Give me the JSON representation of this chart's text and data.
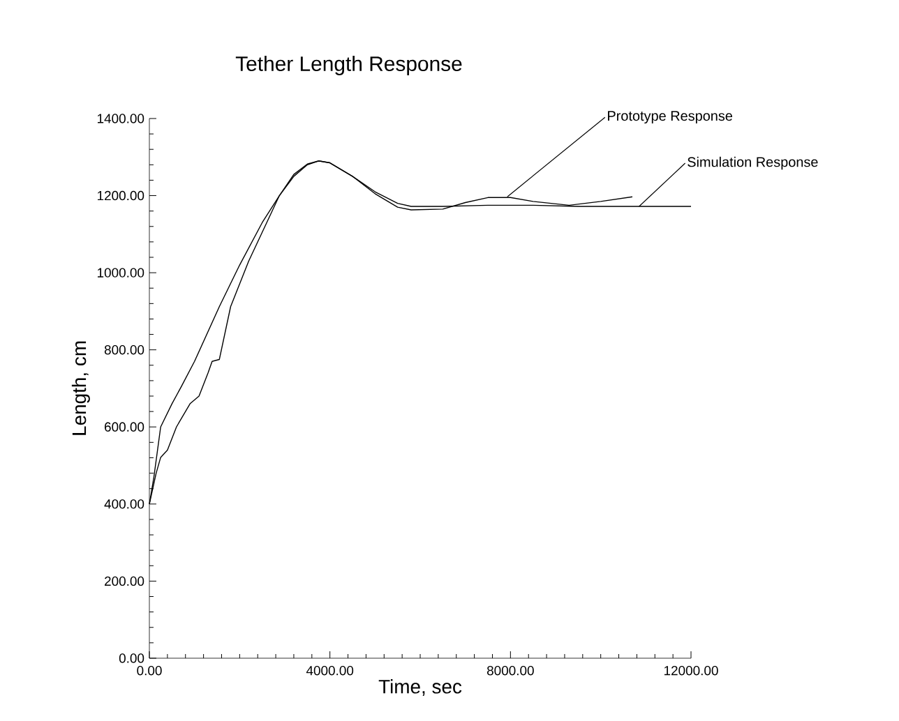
{
  "chart_data": {
    "type": "line",
    "title": "Tether Length Response",
    "xlabel": "Time,  sec",
    "ylabel": "Length,  cm",
    "xlim": [
      0,
      12000
    ],
    "ylim": [
      0,
      1400
    ],
    "xticks": [
      {
        "value": 0,
        "label": "0.00"
      },
      {
        "value": 4000,
        "label": "4000.00"
      },
      {
        "value": 8000,
        "label": "8000.00"
      },
      {
        "value": 12000,
        "label": "12000.00"
      }
    ],
    "yticks": [
      {
        "value": 0,
        "label": "0.00"
      },
      {
        "value": 200,
        "label": "200.00"
      },
      {
        "value": 400,
        "label": "400.00"
      },
      {
        "value": 600,
        "label": "600.00"
      },
      {
        "value": 800,
        "label": "800.00"
      },
      {
        "value": 1000,
        "label": "1000.00"
      },
      {
        "value": 1200,
        "label": "1200.00"
      },
      {
        "value": 1400,
        "label": "1400.00"
      }
    ],
    "grid": false,
    "marker": "none",
    "line_style": "solid",
    "series": [
      {
        "color": "#000000",
        "x": [
          0,
          100,
          250,
          500,
          710,
          1000,
          1550,
          2000,
          2500,
          2880,
          3200,
          3500,
          3750,
          4000,
          4500,
          5000,
          5500,
          5800,
          6500,
          7500,
          8500,
          9500,
          10500,
          12000
        ],
        "values": [
          400,
          470,
          600,
          660,
          705,
          770,
          912,
          1020,
          1130,
          1200,
          1250,
          1280,
          1290,
          1285,
          1250,
          1210,
          1180,
          1172,
          1172,
          1175,
          1175,
          1172,
          1172,
          1172
        ]
      },
      {
        "color": "#000000",
        "x": [
          0,
          150,
          250,
          400,
          600,
          900,
          1100,
          1300,
          1390,
          1550,
          1800,
          2200,
          2600,
          2880,
          3200,
          3500,
          3750,
          4000,
          4500,
          5000,
          5500,
          5800,
          6500,
          7000,
          7500,
          8000,
          8500,
          9300,
          10000,
          10700
        ],
        "values": [
          400,
          480,
          521,
          540,
          600,
          660,
          680,
          740,
          770,
          775,
          912,
          1030,
          1130,
          1200,
          1255,
          1282,
          1290,
          1285,
          1250,
          1205,
          1170,
          1163,
          1165,
          1182,
          1195,
          1195,
          1185,
          1175,
          1185,
          1197
        ]
      }
    ],
    "annotations": [
      {
        "text": "Prototype Response",
        "x": 7930,
        "y": 1197
      },
      {
        "text": "Simulation Response",
        "x": 10850,
        "y": 1172
      }
    ]
  }
}
